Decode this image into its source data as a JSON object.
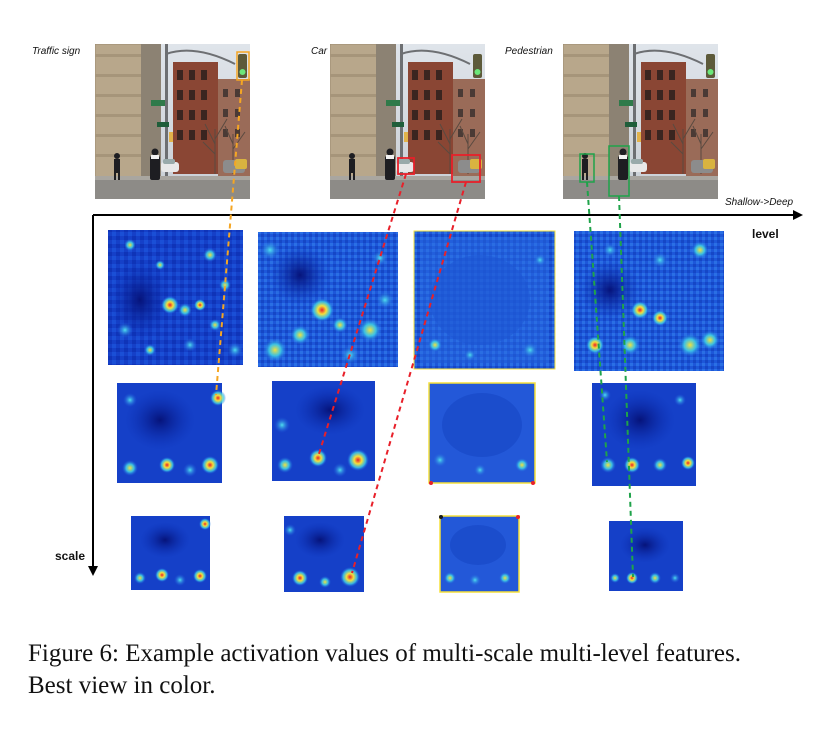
{
  "figure": {
    "photos": [
      {
        "label": "Traffic sign"
      },
      {
        "label": "Car"
      },
      {
        "label": "Pedestrian"
      }
    ],
    "axes": {
      "level_direction": "Shallow->Deep",
      "level_label": "level",
      "scale_label": "scale"
    },
    "connector_colors": {
      "traffic_sign": "#f5a623",
      "car": "#e8202a",
      "pedestrian": "#1fa34a"
    },
    "heatmap_colors": {
      "low": "#0a2fb5",
      "mid": "#20c4e8",
      "high": "#e8202a"
    },
    "caption": "Figure 6: Example activation values of multi-scale multi-level features. Best view in color."
  }
}
